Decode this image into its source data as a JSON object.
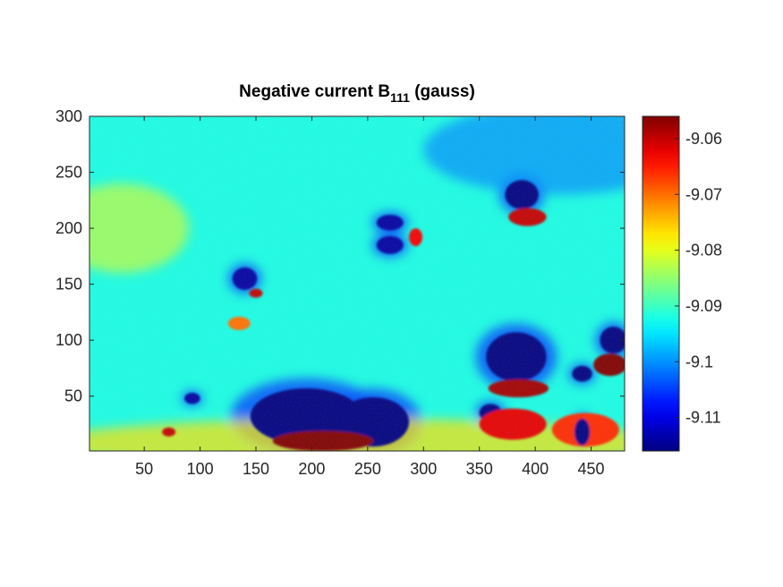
{
  "chart_data": {
    "type": "heatmap",
    "title": {
      "main": "Negative current B",
      "subscript": "111",
      "suffix": " (gauss)"
    },
    "xlabel": "",
    "ylabel": "",
    "xlim": [
      1,
      480
    ],
    "ylim": [
      1,
      300
    ],
    "x_ticks": [
      50,
      100,
      150,
      200,
      250,
      300,
      350,
      400,
      450
    ],
    "y_ticks": [
      50,
      100,
      150,
      200,
      250,
      300
    ],
    "colormap": "jet",
    "colorbar": {
      "clim": [
        -9.116,
        -9.056
      ],
      "ticks": [
        -9.06,
        -9.07,
        -9.08,
        -9.09,
        -9.1,
        -9.11
      ],
      "tick_labels": [
        "-9.06",
        "-9.07",
        "-9.08",
        "-9.09",
        "-9.1",
        "-9.11"
      ]
    },
    "background_value": -9.092,
    "features": [
      {
        "kind": "low",
        "x": 195,
        "y": 32,
        "rx": 50,
        "ry": 25,
        "value": -9.116
      },
      {
        "kind": "low",
        "x": 255,
        "y": 27,
        "rx": 32,
        "ry": 22,
        "value": -9.116
      },
      {
        "kind": "high",
        "x": 210,
        "y": 10,
        "rx": 45,
        "ry": 9,
        "value": -9.056
      },
      {
        "kind": "low",
        "x": 383,
        "y": 85,
        "rx": 27,
        "ry": 22,
        "value": -9.116
      },
      {
        "kind": "high",
        "x": 385,
        "y": 57,
        "rx": 27,
        "ry": 8,
        "value": -9.058
      },
      {
        "kind": "low",
        "x": 388,
        "y": 230,
        "rx": 15,
        "ry": 13,
        "value": -9.116
      },
      {
        "kind": "high",
        "x": 393,
        "y": 210,
        "rx": 17,
        "ry": 8,
        "value": -9.06
      },
      {
        "kind": "low",
        "x": 270,
        "y": 205,
        "rx": 12,
        "ry": 7,
        "value": -9.114
      },
      {
        "kind": "high",
        "x": 293,
        "y": 192,
        "rx": 6,
        "ry": 8,
        "value": -9.063
      },
      {
        "kind": "low",
        "x": 270,
        "y": 185,
        "rx": 12,
        "ry": 8,
        "value": -9.114
      },
      {
        "kind": "low",
        "x": 140,
        "y": 155,
        "rx": 11,
        "ry": 10,
        "value": -9.114
      },
      {
        "kind": "high",
        "x": 150,
        "y": 142,
        "rx": 6,
        "ry": 4,
        "value": -9.06
      },
      {
        "kind": "high",
        "x": 135,
        "y": 115,
        "rx": 10,
        "ry": 6,
        "value": -9.07
      },
      {
        "kind": "low",
        "x": 470,
        "y": 100,
        "rx": 12,
        "ry": 12,
        "value": -9.116
      },
      {
        "kind": "high",
        "x": 467,
        "y": 78,
        "rx": 15,
        "ry": 10,
        "value": -9.056
      },
      {
        "kind": "low",
        "x": 442,
        "y": 70,
        "rx": 9,
        "ry": 7,
        "value": -9.116
      },
      {
        "kind": "low",
        "x": 360,
        "y": 35,
        "rx": 10,
        "ry": 8,
        "value": -9.116
      },
      {
        "kind": "high",
        "x": 380,
        "y": 25,
        "rx": 30,
        "ry": 14,
        "value": -9.062
      },
      {
        "kind": "high",
        "x": 445,
        "y": 20,
        "rx": 30,
        "ry": 15,
        "value": -9.066
      },
      {
        "kind": "low",
        "x": 442,
        "y": 18,
        "rx": 7,
        "ry": 12,
        "value": -9.116
      },
      {
        "kind": "low",
        "x": 93,
        "y": 48,
        "rx": 7,
        "ry": 5,
        "value": -9.114
      },
      {
        "kind": "high",
        "x": 72,
        "y": 18,
        "rx": 6,
        "ry": 4,
        "value": -9.06
      },
      {
        "kind": "warm_band",
        "x": 240,
        "y": 8,
        "rx": 280,
        "ry": 22,
        "value": -9.077
      },
      {
        "kind": "warm_band",
        "x": 30,
        "y": 200,
        "rx": 60,
        "ry": 40,
        "value": -9.082
      },
      {
        "kind": "cool_region",
        "x": 420,
        "y": 270,
        "rx": 120,
        "ry": 40,
        "value": -9.1
      }
    ]
  }
}
